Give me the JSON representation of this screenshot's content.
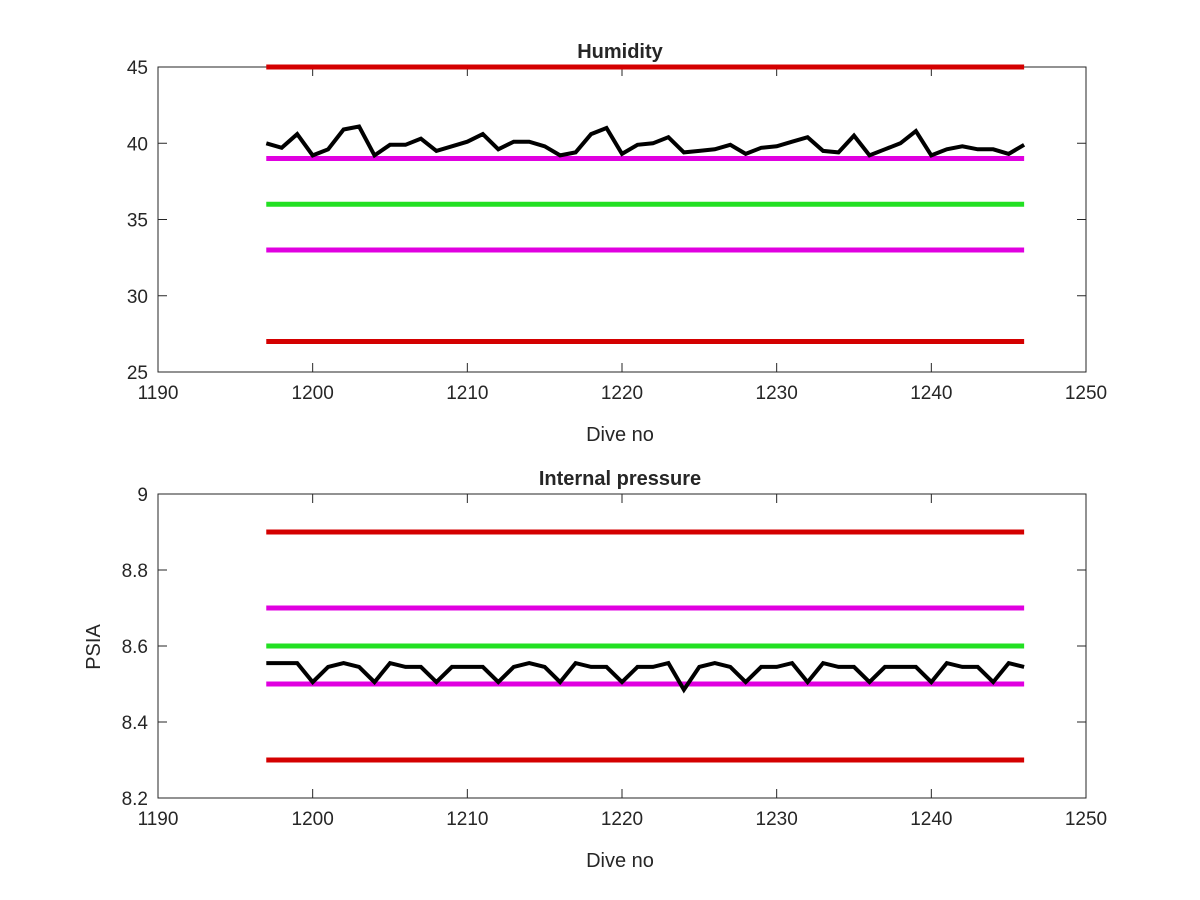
{
  "chart_data": [
    {
      "type": "line",
      "title": "Humidity",
      "xlabel": "Dive no",
      "ylabel": "",
      "xlim": [
        1190,
        1250
      ],
      "ylim": [
        25,
        45
      ],
      "xticks": [
        "1190",
        "1200",
        "1210",
        "1220",
        "1230",
        "1240",
        "1250"
      ],
      "yticks": [
        "25",
        "30",
        "35",
        "40",
        "45"
      ],
      "grid": false,
      "reference_lines": [
        {
          "y": 45,
          "x_range": [
            1197,
            1246
          ],
          "color": "#d40000"
        },
        {
          "y": 39,
          "x_range": [
            1197,
            1246
          ],
          "color": "#e000e0"
        },
        {
          "y": 36,
          "x_range": [
            1197,
            1246
          ],
          "color": "#22e022"
        },
        {
          "y": 33,
          "x_range": [
            1197,
            1246
          ],
          "color": "#e000e0"
        },
        {
          "y": 27,
          "x_range": [
            1197,
            1246
          ],
          "color": "#d40000"
        }
      ],
      "series": [
        {
          "color": "#000000",
          "x": [
            1197,
            1198,
            1199,
            1200,
            1201,
            1202,
            1203,
            1204,
            1205,
            1206,
            1207,
            1208,
            1209,
            1210,
            1211,
            1212,
            1213,
            1214,
            1215,
            1216,
            1217,
            1218,
            1219,
            1220,
            1221,
            1222,
            1223,
            1224,
            1225,
            1226,
            1227,
            1228,
            1229,
            1230,
            1231,
            1232,
            1233,
            1234,
            1235,
            1236,
            1237,
            1238,
            1239,
            1240,
            1241,
            1242,
            1243,
            1244,
            1245,
            1246
          ],
          "values": [
            40.0,
            39.7,
            40.6,
            39.2,
            39.6,
            40.9,
            41.1,
            39.2,
            39.9,
            39.9,
            40.3,
            39.5,
            39.8,
            40.1,
            40.6,
            39.6,
            40.1,
            40.1,
            39.8,
            39.2,
            39.4,
            40.6,
            41.0,
            39.3,
            39.9,
            40.0,
            40.4,
            39.4,
            39.5,
            39.6,
            39.9,
            39.3,
            39.7,
            39.8,
            40.1,
            40.4,
            39.5,
            39.4,
            40.5,
            39.2,
            39.6,
            40.0,
            40.8,
            39.2,
            39.6,
            39.8,
            39.6,
            39.6,
            39.3,
            39.9
          ]
        }
      ]
    },
    {
      "type": "line",
      "title": "Internal pressure",
      "xlabel": "Dive no",
      "ylabel": "PSIA",
      "xlim": [
        1190,
        1250
      ],
      "ylim": [
        8.2,
        9.0
      ],
      "xticks": [
        "1190",
        "1200",
        "1210",
        "1220",
        "1230",
        "1240",
        "1250"
      ],
      "yticks": [
        "8.2",
        "8.4",
        "8.6",
        "8.8",
        "9"
      ],
      "grid": false,
      "reference_lines": [
        {
          "y": 8.9,
          "x_range": [
            1197,
            1246
          ],
          "color": "#d40000"
        },
        {
          "y": 8.7,
          "x_range": [
            1197,
            1246
          ],
          "color": "#e000e0"
        },
        {
          "y": 8.6,
          "x_range": [
            1197,
            1246
          ],
          "color": "#22e022"
        },
        {
          "y": 8.5,
          "x_range": [
            1197,
            1246
          ],
          "color": "#e000e0"
        },
        {
          "y": 8.3,
          "x_range": [
            1197,
            1246
          ],
          "color": "#d40000"
        }
      ],
      "series": [
        {
          "color": "#000000",
          "x": [
            1197,
            1198,
            1199,
            1200,
            1201,
            1202,
            1203,
            1204,
            1205,
            1206,
            1207,
            1208,
            1209,
            1210,
            1211,
            1212,
            1213,
            1214,
            1215,
            1216,
            1217,
            1218,
            1219,
            1220,
            1221,
            1222,
            1223,
            1224,
            1225,
            1226,
            1227,
            1228,
            1229,
            1230,
            1231,
            1232,
            1233,
            1234,
            1235,
            1236,
            1237,
            1238,
            1239,
            1240,
            1241,
            1242,
            1243,
            1244,
            1245,
            1246
          ],
          "values": [
            8.555,
            8.555,
            8.555,
            8.505,
            8.545,
            8.555,
            8.545,
            8.505,
            8.555,
            8.545,
            8.545,
            8.505,
            8.545,
            8.545,
            8.545,
            8.505,
            8.545,
            8.555,
            8.545,
            8.505,
            8.555,
            8.545,
            8.545,
            8.505,
            8.545,
            8.545,
            8.555,
            8.485,
            8.545,
            8.555,
            8.545,
            8.505,
            8.545,
            8.545,
            8.555,
            8.505,
            8.555,
            8.545,
            8.545,
            8.505,
            8.545,
            8.545,
            8.545,
            8.505,
            8.555,
            8.545,
            8.545,
            8.505,
            8.555,
            8.545
          ]
        }
      ]
    }
  ]
}
